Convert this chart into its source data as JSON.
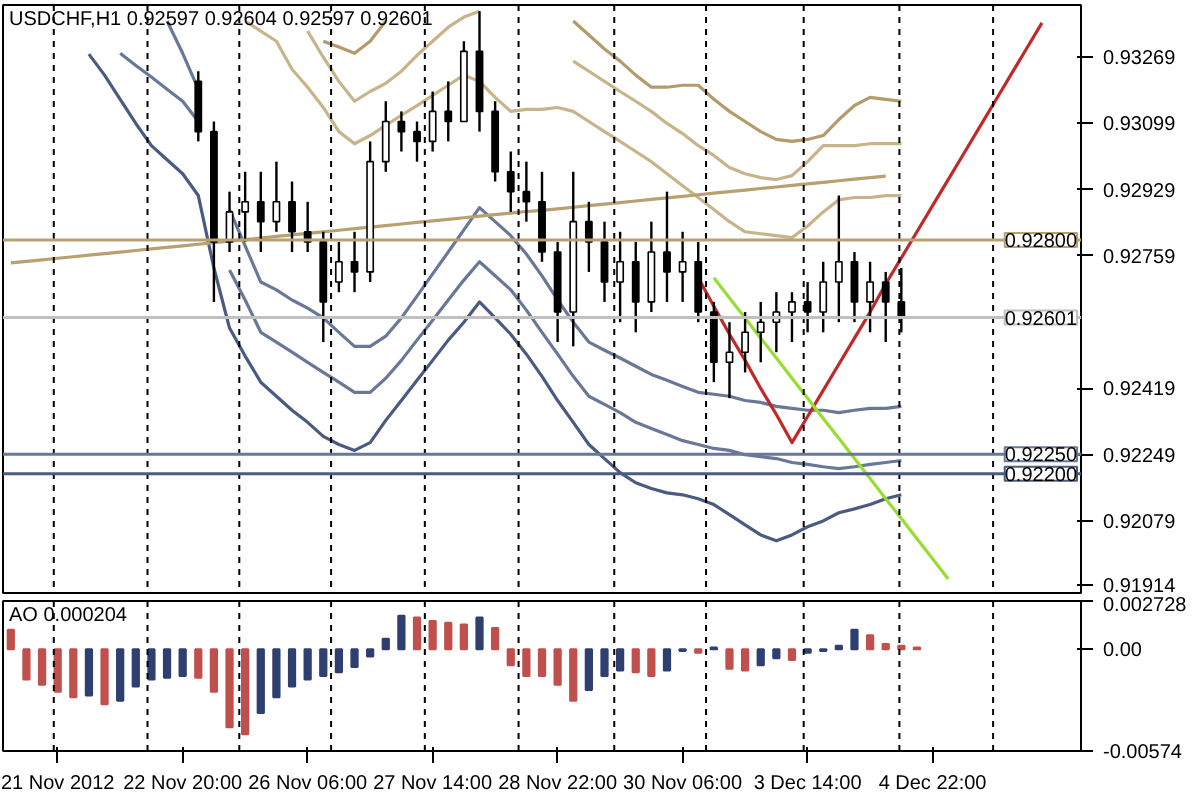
{
  "chart_data": [
    {
      "type": "candlestick",
      "title": "USDCHF,H1  0.92597 0.92604 0.92597 0.92601",
      "categories": [
        null,
        null,
        null,
        null,
        null,
        null,
        null,
        null,
        null,
        null,
        null,
        null,
        null,
        null,
        null,
        null,
        null,
        null,
        null,
        null,
        null,
        null,
        null,
        null,
        null,
        null,
        null,
        null,
        null,
        null,
        null,
        null,
        null,
        null,
        null,
        null,
        null,
        null,
        null,
        null,
        null,
        null,
        null,
        null,
        null,
        null,
        null,
        null,
        null,
        null,
        null,
        null,
        null,
        null,
        null,
        null,
        null,
        null,
        null,
        null,
        null,
        null,
        null,
        null,
        null,
        null,
        null,
        null,
        null
      ],
      "ohlc": [
        null,
        null,
        null,
        null,
        null,
        null,
        null,
        null,
        null,
        null,
        null,
        null,
        [
          0.93207,
          0.93233,
          0.93053,
          0.93078
        ],
        [
          0.93078,
          0.93104,
          0.92641,
          0.92795
        ],
        [
          0.92795,
          0.92924,
          0.92769,
          0.92872
        ],
        [
          0.92872,
          0.92975,
          0.92795,
          0.92898
        ],
        [
          0.92898,
          0.92975,
          0.92769,
          0.92847
        ],
        [
          0.92847,
          0.93001,
          0.92821,
          0.92898
        ],
        [
          0.92898,
          0.9295,
          0.92769,
          0.92821
        ],
        [
          0.92821,
          0.92898,
          0.92769,
          0.92795
        ],
        [
          0.92795,
          0.92821,
          0.92538,
          0.92641
        ],
        [
          0.92692,
          0.92795,
          0.92666,
          0.92744
        ],
        [
          0.92744,
          0.92821,
          0.92666,
          0.92718
        ],
        [
          0.92718,
          0.93053,
          0.92692,
          0.93001
        ],
        [
          0.93001,
          0.93156,
          0.92975,
          0.93104
        ],
        [
          0.93104,
          0.9313,
          0.93027,
          0.93078
        ],
        [
          0.93078,
          0.93104,
          0.93001,
          0.93053
        ],
        [
          0.93053,
          0.93181,
          0.93027,
          0.9313
        ],
        [
          0.9313,
          0.93207,
          0.93053,
          0.93104
        ],
        [
          0.93104,
          0.9331,
          0.93104,
          0.93284
        ],
        [
          0.93284,
          0.93387,
          0.93078,
          0.9313
        ],
        [
          0.9313,
          0.93156,
          0.9295,
          0.92975
        ],
        [
          0.92975,
          0.93027,
          0.92872,
          0.92924
        ],
        [
          0.92924,
          0.93001,
          0.92847,
          0.92898
        ],
        [
          0.92898,
          0.92975,
          0.92744,
          0.92769
        ],
        [
          0.92769,
          0.92795,
          0.92538,
          0.92615
        ],
        [
          0.92615,
          0.92975,
          0.92527,
          0.92847
        ],
        [
          0.92847,
          0.92898,
          0.92718,
          0.92795
        ],
        [
          0.92795,
          0.92847,
          0.92641,
          0.92692
        ],
        [
          0.92692,
          0.92821,
          0.92589,
          0.92744
        ],
        [
          0.92744,
          0.92795,
          0.92563,
          0.92641
        ],
        [
          0.92641,
          0.92847,
          0.92615,
          0.92769
        ],
        [
          0.92769,
          0.92924,
          0.92641,
          0.92718
        ],
        [
          0.92718,
          0.92821,
          0.92641,
          0.92744
        ],
        [
          0.92744,
          0.92795,
          0.92589,
          0.92615
        ],
        [
          0.92615,
          0.92641,
          0.92435,
          0.92486
        ],
        [
          0.92486,
          0.92589,
          0.92394,
          0.92512
        ],
        [
          0.92512,
          0.92615,
          0.9246,
          0.92563
        ],
        [
          0.92563,
          0.92641,
          0.92486,
          0.92589
        ],
        [
          0.92589,
          0.92666,
          0.92512,
          0.92615
        ],
        [
          0.92615,
          0.92666,
          0.92538,
          0.92641
        ],
        [
          0.92641,
          0.92692,
          0.92563,
          0.92615
        ],
        [
          0.92615,
          0.92744,
          0.92563,
          0.92692
        ],
        [
          0.92692,
          0.92914,
          0.92589,
          0.92744
        ],
        [
          0.92744,
          0.92769,
          0.92589,
          0.92641
        ],
        [
          0.92641,
          0.92744,
          0.92563,
          0.92692
        ],
        [
          0.92692,
          0.92718,
          0.92538,
          0.92641
        ],
        [
          0.92641,
          0.92728,
          0.92563,
          0.926
        ],
        null,
        null,
        null,
        null,
        null,
        null,
        null,
        null,
        null,
        null,
        null
      ],
      "series": [
        {
          "type": "line",
          "color": "#4a5a80",
          "values": [
            null,
            null,
            null,
            null,
            null,
            0.93277,
            0.93223,
            0.93161,
            0.93099,
            0.93042,
            0.93006,
            0.9297,
            0.92914,
            0.92728,
            0.92574,
            0.92502,
            0.92435,
            0.92399,
            0.92363,
            0.92332,
            0.92296,
            0.92275,
            0.9226,
            0.9228,
            0.92337,
            0.92388,
            0.9244,
            0.92491,
            0.92543,
            0.92589,
            0.92641,
            0.926,
            0.92558,
            0.92507,
            0.9245,
            0.92388,
            0.92332,
            0.92275,
            0.92239,
            0.92203,
            0.92177,
            0.92162,
            0.92151,
            0.92146,
            0.92136,
            0.92121,
            0.92095,
            0.92069,
            0.92043,
            0.92028,
            0.92043,
            0.92064,
            0.92079,
            0.921,
            0.9211,
            0.92121,
            0.92136,
            0.92146,
            null,
            null,
            null,
            null,
            null,
            null,
            null,
            null,
            null,
            null,
            null
          ]
        },
        {
          "type": "line",
          "color": "#6a7898",
          "values": [
            null,
            null,
            null,
            null,
            null,
            null,
            null,
            0.93279,
            0.93248,
            0.93218,
            0.93187,
            0.93156,
            0.93104,
            null,
            0.92723,
            0.92646,
            0.92563,
            0.92538,
            0.92512,
            0.92486,
            0.9246,
            0.92435,
            0.92409,
            0.92409,
            0.92445,
            0.92491,
            0.92543,
            0.92594,
            0.92646,
            0.92697,
            0.92744,
            0.92708,
            0.92672,
            0.9262,
            0.92563,
            0.92507,
            0.9245,
            0.92399,
            0.92378,
            0.92357,
            0.92332,
            0.92316,
            0.92301,
            0.92285,
            0.92275,
            0.92265,
            0.9226,
            0.92249,
            0.92244,
            0.92239,
            0.92229,
            0.92224,
            0.92218,
            0.92213,
            0.92218,
            0.92224,
            0.92229,
            0.92234,
            null,
            null,
            null,
            null,
            null,
            null,
            null,
            null,
            null,
            null,
            null
          ]
        },
        {
          "type": "line",
          "color": "#6a7898",
          "values": [
            null,
            null,
            null,
            null,
            null,
            null,
            null,
            null,
            null,
            null,
            0.93362,
            0.93279,
            0.93187,
            null,
            0.92878,
            0.92785,
            0.92692,
            0.92672,
            0.92646,
            0.92625,
            0.926,
            0.92563,
            0.92527,
            0.92527,
            0.92553,
            0.926,
            0.92656,
            0.92713,
            0.92769,
            0.92826,
            0.92883,
            0.92847,
            0.92811,
            0.92764,
            0.92708,
            0.92646,
            0.92589,
            0.92538,
            0.92517,
            0.92497,
            0.92476,
            0.92455,
            0.9244,
            0.92424,
            0.92409,
            0.92404,
            0.92399,
            0.92388,
            0.92383,
            0.92373,
            0.92368,
            0.92363,
            0.92363,
            0.92357,
            0.92363,
            0.92368,
            0.92368,
            0.92373,
            null,
            null,
            null,
            null,
            null,
            null,
            null,
            null,
            null,
            null,
            null
          ]
        },
        {
          "type": "line",
          "color": "#c8b48a",
          "values": [
            null,
            null,
            null,
            null,
            null,
            null,
            null,
            null,
            null,
            null,
            null,
            null,
            null,
            null,
            null,
            0.93362,
            0.93336,
            0.9331,
            0.93238,
            0.93192,
            0.9314,
            0.93078,
            0.93047,
            0.93068,
            0.93094,
            0.9312,
            0.93145,
            0.93171,
            0.93197,
            0.93223,
            0.93207,
            0.93166,
            0.9313,
            0.93135,
            0.93135,
            0.9314,
            0.9313,
            0.93104,
            0.93078,
            0.93053,
            0.93027,
            0.93001,
            0.9297,
            0.92939,
            0.92909,
            0.92878,
            0.92847,
            0.92821,
            0.92816,
            0.92811,
            0.92806,
            0.92836,
            0.92872,
            0.92903,
            0.92909,
            0.92909,
            0.92914,
            0.92914,
            null,
            null,
            null,
            null,
            null,
            null,
            null,
            null,
            null,
            null,
            null
          ]
        },
        {
          "type": "line",
          "color": "#c8b48a",
          "values": [
            null,
            null,
            null,
            null,
            null,
            null,
            null,
            null,
            null,
            null,
            null,
            null,
            null,
            null,
            null,
            null,
            null,
            null,
            null,
            0.93336,
            0.93269,
            0.93207,
            0.93156,
            0.93181,
            0.93202,
            0.93233,
            0.93274,
            0.9331,
            0.93346,
            0.93372,
            0.93387,
            null,
            null,
            null,
            null,
            null,
            0.93259,
            0.93233,
            0.93207,
            0.93181,
            0.93156,
            0.9313,
            0.93099,
            0.93073,
            0.93042,
            0.93017,
            0.92986,
            0.9297,
            0.9296,
            0.92955,
            0.92965,
            0.93001,
            0.93042,
            0.93042,
            0.93042,
            0.93047,
            0.93047,
            0.93047,
            null,
            null,
            null,
            null,
            null,
            null,
            null,
            null,
            null,
            null,
            null
          ]
        },
        {
          "type": "line",
          "color": "#b39b6b",
          "values": [
            null,
            null,
            null,
            null,
            null,
            null,
            null,
            null,
            null,
            null,
            null,
            null,
            null,
            null,
            null,
            null,
            null,
            null,
            null,
            null,
            0.9331,
            0.93295,
            0.93279,
            0.9331,
            0.93362,
            null,
            null,
            null,
            null,
            null,
            null,
            null,
            null,
            null,
            null,
            null,
            0.93362,
            0.93326,
            0.9329,
            0.93259,
            0.93223,
            0.93192,
            0.93192,
            0.93197,
            0.93197,
            0.93161,
            0.9313,
            0.93104,
            0.93078,
            0.93058,
            0.93053,
            0.93058,
            0.93068,
            0.93109,
            0.93145,
            0.93166,
            0.93161,
            0.93156,
            null,
            null,
            null,
            null,
            null,
            null,
            null,
            null,
            null,
            null,
            null
          ]
        },
        {
          "type": "line",
          "color": "#b8a070",
          "values": [
            0.92741,
            0.92745,
            0.92749,
            0.92753,
            0.92757,
            0.92761,
            0.92765,
            0.92769,
            0.92773,
            0.92777,
            0.92781,
            0.92785,
            0.92789,
            0.92793,
            0.92797,
            0.92801,
            0.92805,
            0.92809,
            0.92813,
            0.92817,
            0.92821,
            0.92825,
            0.92829,
            0.92833,
            0.92837,
            0.92841,
            0.92845,
            0.92849,
            0.92853,
            0.92857,
            0.92861,
            0.92865,
            0.92869,
            0.92873,
            0.92876,
            0.9288,
            0.92884,
            0.92888,
            0.92892,
            0.92896,
            0.929,
            0.92904,
            0.92908,
            0.92912,
            0.92916,
            0.9292,
            0.92924,
            0.92928,
            0.92932,
            0.92936,
            0.9294,
            0.92944,
            0.92948,
            0.92952,
            0.92956,
            0.9296,
            0.92964,
            null,
            null,
            null,
            null,
            null,
            null,
            null,
            null,
            null,
            null,
            null,
            null
          ]
        },
        {
          "type": "line",
          "color": "#c0282a",
          "values": [
            null,
            null,
            null,
            null,
            null,
            null,
            null,
            null,
            null,
            null,
            null,
            null,
            null,
            null,
            null,
            null,
            null,
            null,
            null,
            null,
            null,
            null,
            null,
            null,
            null,
            null,
            null,
            null,
            null,
            null,
            null,
            null,
            null,
            null,
            null,
            null,
            null,
            null,
            null,
            null,
            null,
            null,
            null,
            null,
            0.92703,
            0.9263,
            0.92558,
            0.92491,
            0.92419,
            0.92352,
            0.9228,
            0.92347,
            0.92414,
            0.92481,
            0.92548,
            0.92615,
            0.92687,
            0.92754,
            0.92821,
            0.92888,
            0.92955,
            0.93022,
            0.93089,
            0.93156,
            0.93223,
            0.9329,
            0.93357,
            null,
            null
          ]
        },
        {
          "type": "line",
          "color": "#99dd33",
          "values": [
            null,
            null,
            null,
            null,
            null,
            null,
            null,
            null,
            null,
            null,
            null,
            null,
            null,
            null,
            null,
            null,
            null,
            null,
            null,
            null,
            null,
            null,
            null,
            null,
            null,
            null,
            null,
            null,
            null,
            null,
            null,
            null,
            null,
            null,
            null,
            null,
            null,
            null,
            null,
            null,
            null,
            null,
            null,
            null,
            null,
            0.92703,
            0.92651,
            0.926,
            0.92548,
            0.92497,
            0.92445,
            0.92394,
            0.92342,
            0.92291,
            0.92239,
            0.92188,
            0.92136,
            0.92085,
            0.92033,
            0.91982,
            0.9193,
            null,
            null,
            null,
            null,
            null,
            null,
            null,
            null
          ]
        }
      ],
      "ref_lines": [
        {
          "axis": "y",
          "value": 0.928,
          "label": "0.92800",
          "color": "#b8a070"
        },
        {
          "axis": "y",
          "value": 0.9225,
          "label": "0.92250",
          "color": "#6a7898"
        },
        {
          "axis": "y",
          "value": 0.922,
          "label": "0.92200",
          "color": "#4a5a80"
        },
        {
          "axis": "y",
          "value": 0.92601,
          "label": "0.92601",
          "color": "#c0c0c0"
        }
      ],
      "ylim": [
        0.91894,
        0.93403
      ],
      "yticks": [
        0.93269,
        0.93099,
        0.92929,
        0.92759,
        0.92419,
        0.92249,
        0.92079,
        0.91914
      ],
      "tick_labels": "y"
    },
    {
      "type": "bar",
      "title": "AO 0.000204",
      "categories": [
        null,
        null,
        null,
        "21 Nov 2012",
        null,
        null,
        null,
        null,
        null,
        null,
        null,
        "22 Nov 20:00",
        null,
        null,
        null,
        null,
        null,
        null,
        null,
        "26 Nov 06:00",
        null,
        null,
        null,
        null,
        null,
        null,
        null,
        "27 Nov 14:00",
        null,
        null,
        null,
        null,
        null,
        null,
        null,
        "28 Nov 22:00",
        null,
        null,
        null,
        null,
        null,
        null,
        null,
        "30 Nov 06:00",
        null,
        null,
        null,
        null,
        null,
        null,
        null,
        "3 Dec 14:00",
        null,
        null,
        null,
        null,
        null,
        null,
        null,
        "4 Dec 22:00",
        null,
        null,
        null,
        null,
        null,
        null,
        null,
        null,
        null
      ],
      "values": [
        0.0011,
        -0.0017,
        -0.002,
        -0.0024,
        -0.0027,
        -0.0026,
        -0.0031,
        -0.0029,
        -0.0021,
        -0.0017,
        -0.0016,
        -0.0015,
        -0.0016,
        -0.0024,
        -0.0044,
        -0.0048,
        -0.0036,
        -0.0027,
        -0.0021,
        -0.0017,
        -0.0015,
        -0.0013,
        -0.001,
        -0.0004,
        0.0006,
        0.0019,
        0.0018,
        0.0016,
        0.0015,
        0.0014,
        0.0018,
        0.0012,
        -0.0009,
        -0.0015,
        -0.0015,
        -0.002,
        -0.0029,
        -0.0023,
        -0.0015,
        -0.0012,
        -0.0013,
        -0.0015,
        -0.0012,
        -0.0001,
        -0.0002,
        0.0001,
        -0.0011,
        -0.0012,
        -0.0009,
        -0.0005,
        -0.0006,
        -0.0002,
        -0.0001,
        0.0002,
        0.0011,
        0.0008,
        0.0003,
        0.0002,
        0.0001,
        null,
        null,
        null,
        null,
        null,
        null,
        null,
        null,
        null,
        null
      ],
      "colors": [
        "#c0504d",
        "#c0504d",
        "#c0504d",
        "#c0504d",
        "#c0504d",
        "#2f3f6f",
        "#c0504d",
        "#2f3f6f",
        "#2f3f6f",
        "#2f3f6f",
        "#2f3f6f",
        "#2f3f6f",
        "#c0504d",
        "#c0504d",
        "#c0504d",
        "#c0504d",
        "#2f3f6f",
        "#2f3f6f",
        "#2f3f6f",
        "#2f3f6f",
        "#2f3f6f",
        "#2f3f6f",
        "#2f3f6f",
        "#2f3f6f",
        "#2f3f6f",
        "#2f3f6f",
        "#c0504d",
        "#c0504d",
        "#c0504d",
        "#c0504d",
        "#2f3f6f",
        "#c0504d",
        "#c0504d",
        "#c0504d",
        "#c0504d",
        "#c0504d",
        "#c0504d",
        "#2f3f6f",
        "#2f3f6f",
        "#2f3f6f",
        "#c0504d",
        "#c0504d",
        "#2f3f6f",
        "#2f3f6f",
        "#c0504d",
        "#2f3f6f",
        "#c0504d",
        "#c0504d",
        "#2f3f6f",
        "#2f3f6f",
        "#c0504d",
        "#2f3f6f",
        "#2f3f6f",
        "#2f3f6f",
        "#2f3f6f",
        "#c0504d",
        "#c0504d",
        "#c0504d",
        "#c0504d",
        "#c0504d",
        "#c0504d",
        "#c0504d",
        "#c0504d",
        "#c0504d",
        "#c0504d",
        "#c0504d",
        "#c0504d",
        "#c0504d",
        "#c0504d"
      ],
      "ylim": [
        -0.00574,
        0.002728
      ],
      "yticks": [
        0.002728,
        {
          "value": 0,
          "label": "0.00"
        },
        -0.00574
      ]
    }
  ]
}
